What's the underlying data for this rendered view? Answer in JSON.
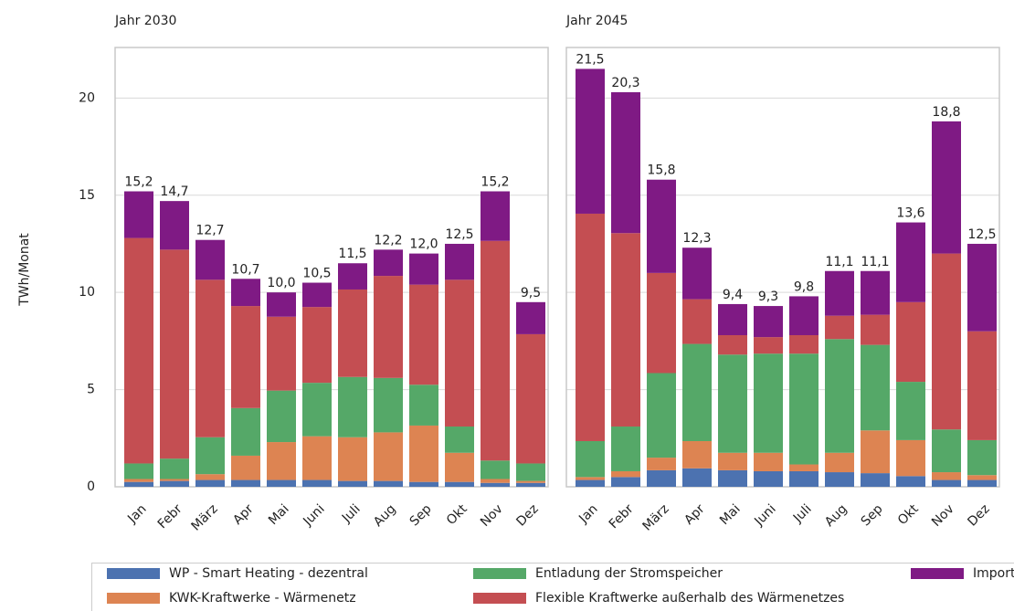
{
  "chart_data": {
    "type": "bar",
    "stacked": true,
    "ylabel": "TWh/Monat",
    "ylim": [
      0,
      22.6
    ],
    "yticks": [
      0,
      5,
      10,
      15,
      20
    ],
    "grid": true,
    "legend": "bottom",
    "categories": [
      "Jan",
      "Febr",
      "März",
      "Apr",
      "Mai",
      "Juni",
      "Juli",
      "Aug",
      "Sep",
      "Okt",
      "Nov",
      "Dez"
    ],
    "series": [
      {
        "name": "WP - Smart Heating - dezentral",
        "color": "#4c72b0"
      },
      {
        "name": "KWK-Kraftwerke - Wärmenetz",
        "color": "#dd8452"
      },
      {
        "name": "Entladung der Stromspeicher",
        "color": "#55a868"
      },
      {
        "name": "Flexible Kraftwerke außerhalb des Wärmenetzes",
        "color": "#c44e52"
      },
      {
        "name": "Import",
        "color": "#7f1a84"
      }
    ],
    "panels": [
      {
        "title": "Jahr 2030",
        "series": [
          {
            "values": [
              0.25,
              0.3,
              0.35,
              0.35,
              0.35,
              0.35,
              0.3,
              0.3,
              0.25,
              0.25,
              0.2,
              0.2
            ]
          },
          {
            "values": [
              0.15,
              0.1,
              0.3,
              1.25,
              1.95,
              2.25,
              2.25,
              2.5,
              2.9,
              1.5,
              0.2,
              0.1
            ]
          },
          {
            "values": [
              0.8,
              1.05,
              1.9,
              2.45,
              2.65,
              2.75,
              3.1,
              2.8,
              2.1,
              1.35,
              0.95,
              0.9
            ]
          },
          {
            "values": [
              11.6,
              10.75,
              8.1,
              5.25,
              3.8,
              3.9,
              4.5,
              5.25,
              5.15,
              7.55,
              11.3,
              6.65
            ]
          },
          {
            "values": [
              2.4,
              2.5,
              2.05,
              1.4,
              1.25,
              1.25,
              1.35,
              1.35,
              1.6,
              1.85,
              2.55,
              1.65
            ]
          }
        ],
        "totals": {
          "values": [
            15.2,
            14.7,
            12.7,
            10.7,
            10.0,
            10.5,
            11.5,
            12.2,
            12.0,
            12.5,
            15.2,
            9.5
          ],
          "value_labels": [
            "15,2",
            "14,7",
            "12,7",
            "10,7",
            "10,0",
            "10,5",
            "11,5",
            "12,2",
            "12,0",
            "12,5",
            "15,2",
            "9,5"
          ]
        }
      },
      {
        "title": "Jahr 2045",
        "series": [
          {
            "values": [
              0.35,
              0.5,
              0.85,
              0.95,
              0.85,
              0.8,
              0.8,
              0.75,
              0.7,
              0.55,
              0.35,
              0.35
            ]
          },
          {
            "values": [
              0.15,
              0.3,
              0.65,
              1.4,
              0.9,
              0.95,
              0.35,
              1.0,
              2.2,
              1.85,
              0.4,
              0.25
            ]
          },
          {
            "values": [
              1.85,
              2.3,
              4.35,
              5.0,
              5.05,
              5.1,
              5.7,
              5.85,
              4.4,
              3.0,
              2.2,
              1.8
            ]
          },
          {
            "values": [
              11.7,
              9.95,
              5.15,
              2.3,
              1.0,
              0.85,
              0.95,
              1.2,
              1.55,
              4.1,
              9.05,
              5.6
            ]
          },
          {
            "values": [
              7.45,
              7.25,
              4.8,
              2.65,
              1.6,
              1.6,
              2.0,
              2.3,
              2.25,
              4.1,
              6.8,
              4.5
            ]
          }
        ],
        "totals": {
          "values": [
            21.5,
            20.3,
            15.8,
            12.3,
            9.4,
            9.3,
            9.8,
            11.1,
            11.1,
            13.6,
            18.8,
            12.5
          ],
          "value_labels": [
            "21,5",
            "20,3",
            "15,8",
            "12,3",
            "9,4",
            "9,3",
            "9,8",
            "11,1",
            "11,1",
            "13,6",
            "18,8",
            "12,5"
          ]
        }
      }
    ]
  }
}
